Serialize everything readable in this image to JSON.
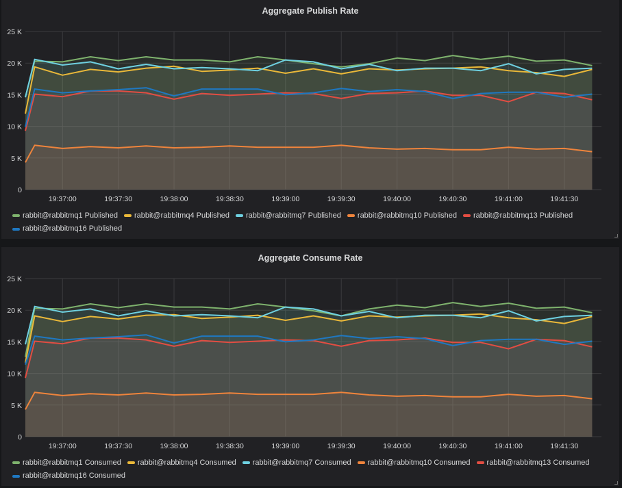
{
  "chart_data": [
    {
      "type": "line",
      "title": "Aggregate Publish Rate",
      "fill": "area",
      "grid": true,
      "legend": "bottom",
      "ylim": [
        0,
        25000
      ],
      "yticks": [
        0,
        5000,
        10000,
        15000,
        20000,
        25000
      ],
      "ytick_labels": [
        "0",
        "5 K",
        "10 K",
        "15 K",
        "20 K",
        "25 K"
      ],
      "xlim": [
        "19:36:40",
        "19:41:50"
      ],
      "xtick_labels": [
        "19:37:00",
        "19:37:30",
        "19:38:00",
        "19:38:30",
        "19:39:00",
        "19:39:30",
        "19:40:00",
        "19:40:30",
        "19:41:00",
        "19:41:30"
      ],
      "x": [
        "19:36:40",
        "19:36:45",
        "19:37:00",
        "19:37:15",
        "19:37:30",
        "19:37:45",
        "19:38:00",
        "19:38:15",
        "19:38:30",
        "19:38:45",
        "19:39:00",
        "19:39:15",
        "19:39:30",
        "19:39:45",
        "19:40:00",
        "19:40:15",
        "19:40:30",
        "19:40:45",
        "19:41:00",
        "19:41:15",
        "19:41:30",
        "19:41:45"
      ],
      "series": [
        {
          "name": "rabbit@rabbitmq1 Published",
          "color": "#7eb26d",
          "values": [
            14600,
            20300,
            20200,
            21000,
            20400,
            21000,
            20500,
            20500,
            20200,
            21000,
            20500,
            19900,
            19400,
            19900,
            20800,
            20400,
            21200,
            20600,
            21100,
            20300,
            20500,
            19600
          ]
        },
        {
          "name": "rabbit@rabbitmq4 Published",
          "color": "#eab839",
          "values": [
            12000,
            19400,
            18100,
            19000,
            18600,
            19200,
            19500,
            18700,
            18900,
            19200,
            18400,
            19100,
            18300,
            19100,
            18900,
            19100,
            19200,
            19400,
            18800,
            18500,
            17900,
            19000
          ]
        },
        {
          "name": "rabbit@rabbitmq7 Published",
          "color": "#6ed0e0",
          "values": [
            14600,
            20600,
            19700,
            20200,
            19100,
            19800,
            19100,
            19300,
            19100,
            18800,
            20500,
            20200,
            19100,
            19800,
            18800,
            19200,
            19200,
            18800,
            19900,
            18300,
            19000,
            19200
          ]
        },
        {
          "name": "rabbit@rabbitmq10 Published",
          "color": "#ef843c",
          "values": [
            4300,
            7000,
            6500,
            6800,
            6600,
            6900,
            6600,
            6700,
            6900,
            6700,
            6700,
            6700,
            7000,
            6600,
            6400,
            6500,
            6300,
            6300,
            6700,
            6400,
            6500,
            6000
          ]
        },
        {
          "name": "rabbit@rabbitmq13 Published",
          "color": "#e24d42",
          "values": [
            9300,
            15100,
            14700,
            15600,
            15600,
            15300,
            14300,
            15200,
            14900,
            15100,
            15300,
            15200,
            14400,
            15200,
            15300,
            15600,
            14900,
            14900,
            13900,
            15400,
            15200,
            14200
          ]
        },
        {
          "name": "rabbit@rabbitmq16 Published",
          "color": "#1f78c1",
          "values": [
            9900,
            15900,
            15300,
            15600,
            15800,
            16100,
            14800,
            15900,
            15900,
            15900,
            15000,
            15300,
            16000,
            15500,
            15800,
            15500,
            14400,
            15200,
            15400,
            15400,
            14600,
            15100
          ]
        }
      ]
    },
    {
      "type": "line",
      "title": "Aggregate Consume Rate",
      "fill": "area",
      "grid": true,
      "legend": "bottom",
      "ylim": [
        0,
        25000
      ],
      "yticks": [
        0,
        5000,
        10000,
        15000,
        20000,
        25000
      ],
      "ytick_labels": [
        "0",
        "5 K",
        "10 K",
        "15 K",
        "20 K",
        "25 K"
      ],
      "xlim": [
        "19:36:40",
        "19:41:50"
      ],
      "xtick_labels": [
        "19:37:00",
        "19:37:30",
        "19:38:00",
        "19:38:30",
        "19:39:00",
        "19:39:30",
        "19:40:00",
        "19:40:30",
        "19:41:00",
        "19:41:30"
      ],
      "x": [
        "19:36:40",
        "19:36:45",
        "19:37:00",
        "19:37:15",
        "19:37:30",
        "19:37:45",
        "19:38:00",
        "19:38:15",
        "19:38:30",
        "19:38:45",
        "19:39:00",
        "19:39:15",
        "19:39:30",
        "19:39:45",
        "19:40:00",
        "19:40:15",
        "19:40:30",
        "19:40:45",
        "19:41:00",
        "19:41:15",
        "19:41:30",
        "19:41:45"
      ],
      "series": [
        {
          "name": "rabbit@rabbitmq1 Consumed",
          "color": "#7eb26d",
          "values": [
            12600,
            20300,
            20200,
            21000,
            20400,
            21000,
            20500,
            20500,
            20200,
            21000,
            20500,
            19900,
            19100,
            20200,
            20800,
            20400,
            21200,
            20600,
            21100,
            20300,
            20500,
            19600
          ]
        },
        {
          "name": "rabbit@rabbitmq4 Consumed",
          "color": "#eab839",
          "values": [
            11700,
            19100,
            18200,
            19000,
            18600,
            19200,
            19300,
            18700,
            18900,
            19200,
            18400,
            19100,
            18300,
            19100,
            18900,
            19100,
            19200,
            19400,
            18800,
            18500,
            17900,
            19000
          ]
        },
        {
          "name": "rabbit@rabbitmq7 Consumed",
          "color": "#6ed0e0",
          "values": [
            14600,
            20600,
            19700,
            20200,
            19100,
            19900,
            19100,
            19300,
            19100,
            18800,
            20500,
            20200,
            19100,
            19800,
            18800,
            19200,
            19200,
            18800,
            19900,
            18300,
            19000,
            19200
          ]
        },
        {
          "name": "rabbit@rabbitmq10 Consumed",
          "color": "#ef843c",
          "values": [
            4300,
            7000,
            6500,
            6800,
            6600,
            6900,
            6600,
            6700,
            6900,
            6700,
            6700,
            6700,
            7000,
            6600,
            6400,
            6500,
            6300,
            6300,
            6700,
            6400,
            6500,
            6000
          ]
        },
        {
          "name": "rabbit@rabbitmq13 Consumed",
          "color": "#e24d42",
          "values": [
            9300,
            15100,
            14700,
            15600,
            15600,
            15300,
            14300,
            15200,
            14900,
            15100,
            15300,
            15200,
            14300,
            15200,
            15300,
            15600,
            14900,
            14900,
            13900,
            15400,
            15200,
            14200
          ]
        },
        {
          "name": "rabbit@rabbitmq16 Consumed",
          "color": "#1f78c1",
          "values": [
            11400,
            15900,
            15300,
            15600,
            15800,
            16100,
            14800,
            15900,
            15900,
            15900,
            15000,
            15300,
            16000,
            15500,
            15800,
            15500,
            14400,
            15200,
            15400,
            15400,
            14600,
            15100
          ]
        }
      ]
    }
  ]
}
